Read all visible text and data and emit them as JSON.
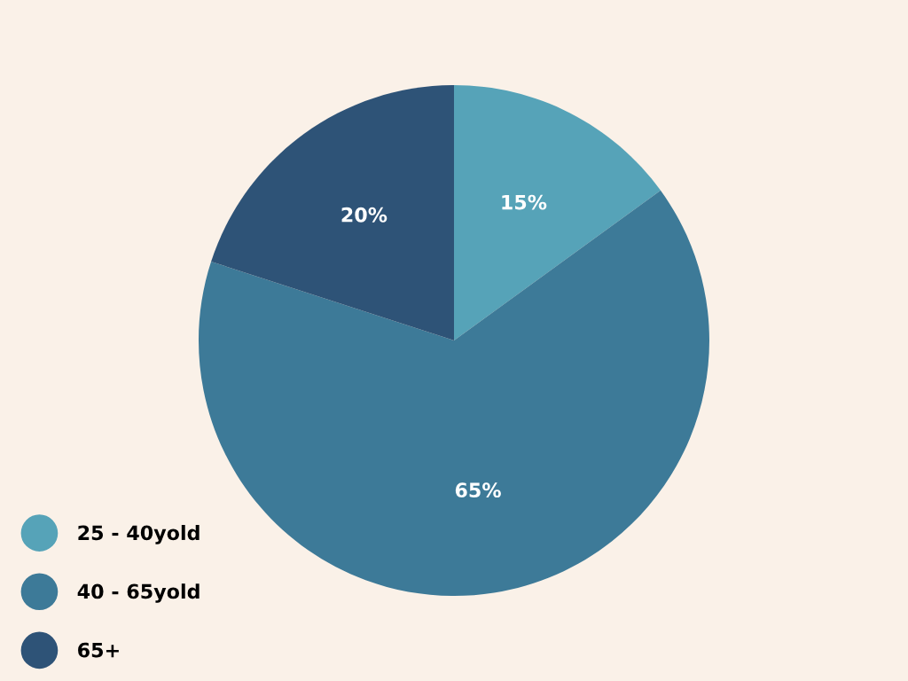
{
  "chart_data": {
    "type": "pie",
    "categories": [
      "25 - 40yold",
      "40 - 65yold",
      "65+"
    ],
    "values": [
      15,
      65,
      20
    ],
    "value_labels": [
      "15%",
      "65%",
      "20%"
    ],
    "colors": [
      "#56a3b8",
      "#3d7a98",
      "#2e5377"
    ],
    "legend": "bottom left"
  }
}
